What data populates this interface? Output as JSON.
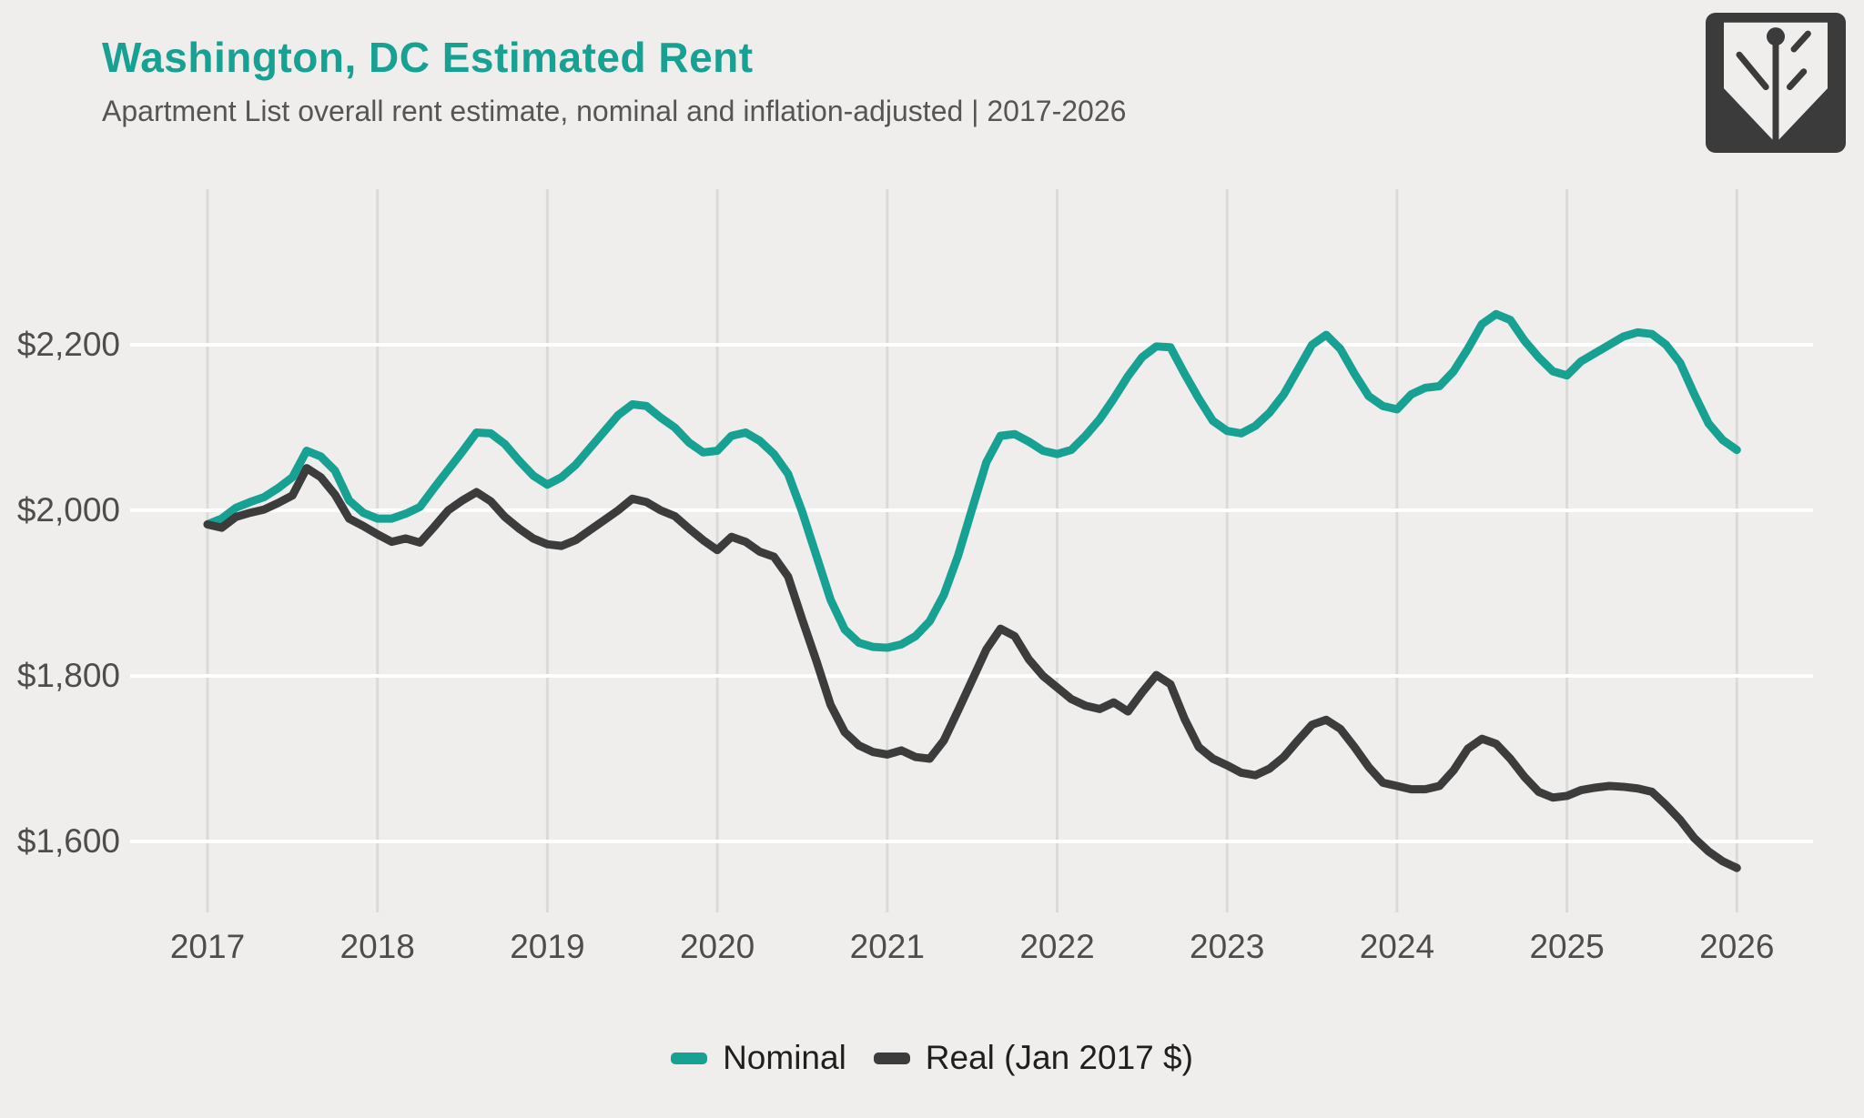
{
  "header": {
    "title": "Washington, DC Estimated Rent",
    "subtitle": "Apartment List overall rent estimate, nominal and inflation-adjusted | 2017-2026"
  },
  "colors": {
    "accent_teal": "#17A192",
    "dark_gray": "#3C3C3C",
    "background": "#EFEEEC",
    "horizontal_grid": "#FFFFFF",
    "vertical_grid": "#DADAD8",
    "axis_label": "#4D4D4D"
  },
  "chart_data": {
    "type": "line",
    "title": "Washington, DC Estimated Rent",
    "subtitle": "Apartment List overall rent estimate, nominal and inflation-adjusted | 2017-2026",
    "x_start": "2017-01",
    "x_interval": "monthly",
    "x_ticks": [
      2017,
      2018,
      2019,
      2020,
      2021,
      2022,
      2023,
      2024,
      2025,
      2026
    ],
    "y_ticks": [
      {
        "value": 1600,
        "label": "$1,600"
      },
      {
        "value": 1800,
        "label": "$1,800"
      },
      {
        "value": 2000,
        "label": "$2,000"
      },
      {
        "value": 2200,
        "label": "$2,200"
      }
    ],
    "ylim": [
      1550,
      2260
    ],
    "grid": {
      "horizontal": true,
      "vertical": true
    },
    "legend_position": "bottom",
    "series": [
      {
        "name": "Nominal",
        "color": "#17A192",
        "values": [
          1983,
          1990,
          2003,
          2010,
          2016,
          2027,
          2040,
          2072,
          2065,
          2048,
          2012,
          1997,
          1990,
          1990,
          1996,
          2004,
          2027,
          2049,
          2071,
          2094,
          2093,
          2080,
          2060,
          2042,
          2031,
          2040,
          2055,
          2075,
          2095,
          2115,
          2128,
          2126,
          2112,
          2100,
          2082,
          2070,
          2072,
          2090,
          2094,
          2084,
          2068,
          2044,
          1998,
          1945,
          1892,
          1856,
          1840,
          1835,
          1834,
          1838,
          1848,
          1866,
          1898,
          1945,
          2002,
          2058,
          2090,
          2092,
          2083,
          2072,
          2068,
          2073,
          2090,
          2110,
          2135,
          2162,
          2185,
          2198,
          2197,
          2165,
          2135,
          2108,
          2096,
          2093,
          2102,
          2118,
          2140,
          2170,
          2200,
          2212,
          2195,
          2165,
          2138,
          2126,
          2122,
          2140,
          2148,
          2150,
          2168,
          2195,
          2225,
          2237,
          2230,
          2205,
          2185,
          2168,
          2163,
          2180,
          2190,
          2200,
          2210,
          2215,
          2213,
          2200,
          2178,
          2140,
          2105,
          2085,
          2073
        ]
      },
      {
        "name": "Real (Jan 2017 $)",
        "color": "#3C3C3C",
        "values": [
          1983,
          1979,
          1992,
          1997,
          2001,
          2009,
          2018,
          2051,
          2040,
          2019,
          1990,
          1981,
          1971,
          1962,
          1966,
          1961,
          1980,
          2000,
          2012,
          2022,
          2011,
          1992,
          1978,
          1966,
          1959,
          1957,
          1964,
          1976,
          1988,
          2000,
          2014,
          2010,
          2000,
          1993,
          1978,
          1964,
          1952,
          1968,
          1962,
          1950,
          1944,
          1920,
          1868,
          1818,
          1765,
          1732,
          1716,
          1708,
          1705,
          1710,
          1702,
          1700,
          1722,
          1758,
          1795,
          1832,
          1857,
          1848,
          1820,
          1800,
          1786,
          1772,
          1764,
          1760,
          1768,
          1757,
          1780,
          1801,
          1790,
          1748,
          1714,
          1700,
          1692,
          1683,
          1680,
          1688,
          1702,
          1722,
          1741,
          1747,
          1736,
          1714,
          1690,
          1671,
          1667,
          1663,
          1663,
          1667,
          1686,
          1712,
          1724,
          1718,
          1700,
          1678,
          1660,
          1653,
          1655,
          1662,
          1665,
          1667,
          1666,
          1664,
          1660,
          1644,
          1626,
          1604,
          1588,
          1576,
          1568
        ]
      }
    ]
  },
  "legend": {
    "items": [
      {
        "label": "Nominal"
      },
      {
        "label": "Real (Jan 2017 $)"
      }
    ]
  }
}
